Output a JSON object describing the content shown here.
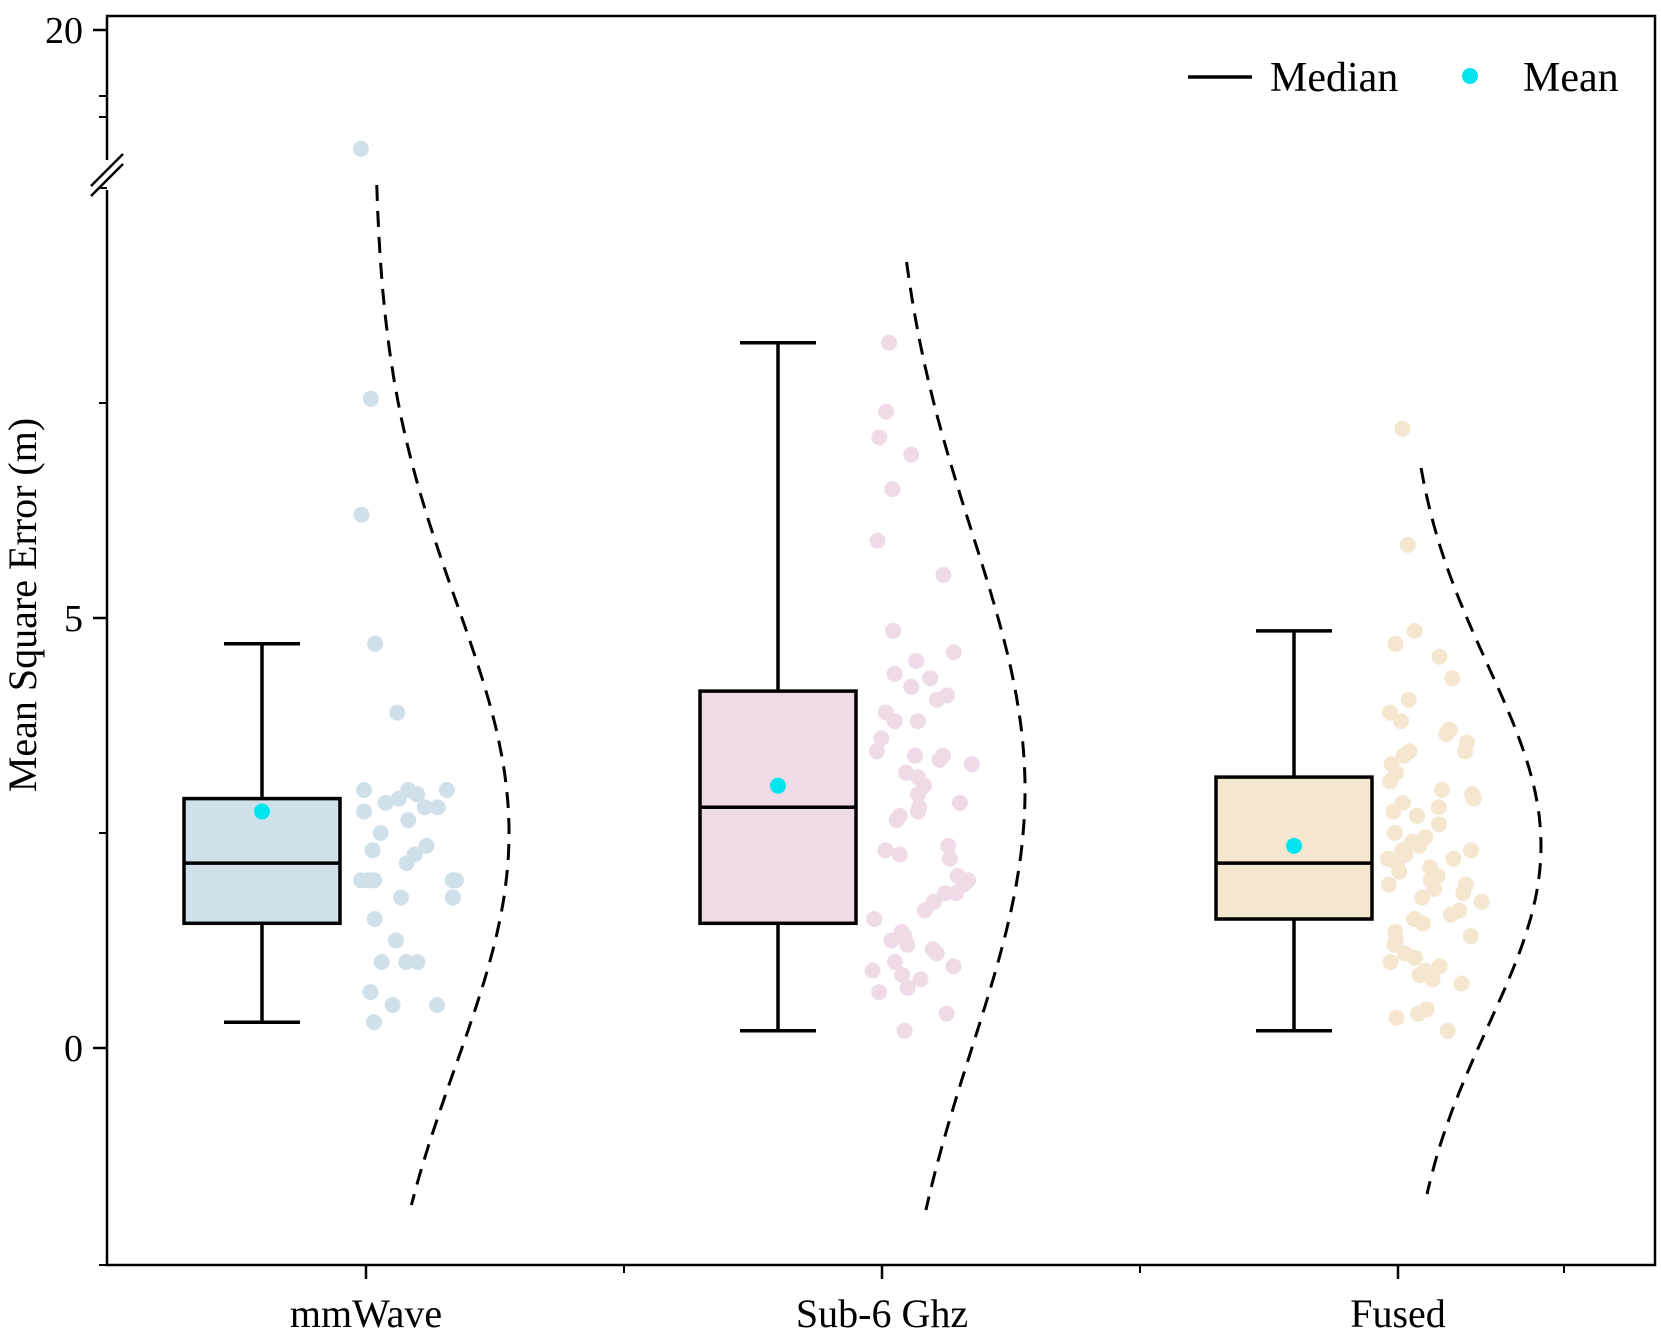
{
  "chart_data": {
    "type": "box",
    "title": "",
    "xlabel": "",
    "ylabel": "Mean Square Error (m)",
    "y_ticks": [
      0,
      5,
      20
    ],
    "y_break": {
      "from": 10.5,
      "to": 19
    },
    "ylim": [
      -2.5,
      20.2
    ],
    "categories": [
      "mmWave",
      "Sub-6 Ghz",
      "Fused"
    ],
    "legend": [
      {
        "label": "Median",
        "symbol": "line",
        "color": "#000000"
      },
      {
        "label": "Mean",
        "symbol": "dot",
        "color": "#00e5ee"
      }
    ],
    "legend_position": "top-right",
    "mean_color": "#00e5ee",
    "series": [
      {
        "name": "mmWave",
        "color": "#d0e0ea",
        "box": {
          "whisker_low": 0.3,
          "q1": 1.45,
          "median": 2.15,
          "q3": 2.9,
          "whisker_high": 4.7,
          "mean": 2.75
        },
        "points": [
          19.1,
          7.55,
          6.2,
          4.7,
          3.9,
          3.0,
          3.0,
          3.0,
          2.95,
          2.9,
          2.85,
          2.8,
          2.8,
          2.75,
          2.65,
          2.5,
          2.35,
          2.3,
          2.25,
          2.15,
          1.95,
          1.95,
          1.95,
          1.95,
          1.95,
          1.75,
          1.75,
          1.5,
          1.25,
          1.0,
          1.0,
          1.0,
          0.65,
          0.5,
          0.5,
          0.3
        ],
        "density": {
          "center": 2.5,
          "sd": 2.7
        }
      },
      {
        "name": "Sub-6 Ghz",
        "color": "#efdbe7",
        "box": {
          "whisker_low": 0.2,
          "q1": 1.45,
          "median": 2.8,
          "q3": 4.15,
          "whisker_high": 8.2,
          "mean": 3.05
        },
        "points": [
          8.2,
          7.4,
          7.1,
          6.9,
          6.5,
          6.5,
          5.9,
          5.5,
          4.85,
          4.6,
          4.5,
          4.35,
          4.3,
          4.2,
          4.1,
          4.05,
          3.9,
          3.8,
          3.8,
          3.6,
          3.45,
          3.4,
          3.4,
          3.35,
          3.3,
          3.2,
          3.15,
          3.05,
          2.95,
          2.85,
          2.8,
          2.75,
          2.7,
          2.65,
          2.35,
          2.3,
          2.25,
          2.2,
          2.0,
          1.95,
          1.9,
          1.8,
          1.8,
          1.7,
          1.6,
          1.5,
          1.35,
          1.3,
          1.25,
          1.2,
          1.15,
          1.1,
          1.0,
          0.95,
          0.9,
          0.85,
          0.8,
          0.7,
          0.65,
          0.4,
          0.2
        ],
        "density": {
          "center": 3.0,
          "sd": 3.0
        }
      },
      {
        "name": "Fused",
        "color": "#f5e6cf",
        "box": {
          "whisker_low": 0.2,
          "q1": 1.5,
          "median": 2.15,
          "q3": 3.15,
          "whisker_high": 4.85,
          "mean": 2.35
        },
        "points": [
          7.2,
          5.85,
          4.85,
          4.7,
          4.55,
          4.3,
          4.05,
          3.9,
          3.8,
          3.7,
          3.7,
          3.65,
          3.55,
          3.45,
          3.45,
          3.4,
          3.3,
          3.2,
          3.1,
          3.0,
          2.95,
          2.9,
          2.85,
          2.8,
          2.75,
          2.7,
          2.6,
          2.5,
          2.45,
          2.4,
          2.35,
          2.3,
          2.3,
          2.25,
          2.2,
          2.2,
          2.15,
          2.1,
          2.05,
          2.0,
          1.95,
          1.9,
          1.9,
          1.85,
          1.8,
          1.75,
          1.7,
          1.6,
          1.55,
          1.5,
          1.45,
          1.35,
          1.3,
          1.25,
          1.2,
          1.1,
          1.05,
          1.0,
          0.95,
          0.9,
          0.85,
          0.8,
          0.75,
          0.45,
          0.4,
          0.35,
          0.2
        ],
        "density": {
          "center": 2.35,
          "sd": 2.1
        }
      }
    ]
  }
}
